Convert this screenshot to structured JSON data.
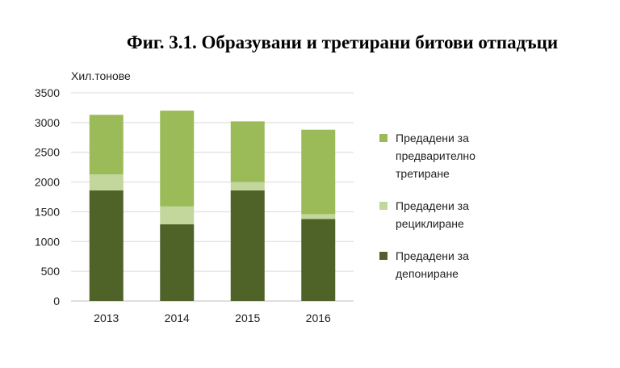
{
  "chart_data": {
    "type": "bar",
    "stacked": true,
    "title": "Фиг. 3.1.   Образувани и третирани битови отпадъци",
    "ylabel": "Хил.тонове",
    "categories": [
      "2013",
      "2014",
      "2015",
      "2016"
    ],
    "ylim": [
      0,
      3500
    ],
    "yticks": [
      0,
      500,
      1000,
      1500,
      2000,
      2500,
      3000,
      3500
    ],
    "grid": true,
    "legend_position": "right",
    "series": [
      {
        "name": "Предадени за депониране",
        "color": "#4f6228",
        "values": [
          1860,
          1290,
          1860,
          1380
        ]
      },
      {
        "name": "Предадени за рециклиране",
        "color": "#c3d69b",
        "values": [
          270,
          300,
          140,
          80
        ]
      },
      {
        "name": "Предадени за предварително третиране",
        "color": "#9bbb59",
        "values": [
          1000,
          1610,
          1020,
          1420
        ]
      }
    ],
    "legend_lines": [
      [
        "Предадени за",
        "предварително",
        "третиране"
      ],
      [
        "Предадени за",
        "рециклиране"
      ],
      [
        "Предадени за",
        "депониране"
      ]
    ]
  }
}
